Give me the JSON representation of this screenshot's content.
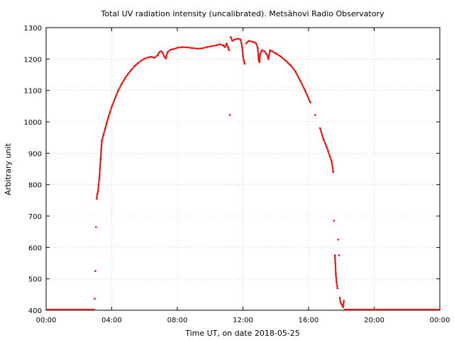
{
  "chart_data": {
    "type": "scatter",
    "title": "Total UV radiation intensity (uncalibrated). Metsähovi Radio Observatory",
    "xlabel": "Time UT, on date 2018-05-25",
    "ylabel": "Arbitrary unit",
    "xlim": [
      0,
      24
    ],
    "ylim": [
      400,
      1300
    ],
    "grid": true,
    "x_ticks": [
      {
        "value": 0,
        "label": "00:00"
      },
      {
        "value": 4,
        "label": "04:00"
      },
      {
        "value": 8,
        "label": "08:00"
      },
      {
        "value": 12,
        "label": "12:00"
      },
      {
        "value": 16,
        "label": "16:00"
      },
      {
        "value": 20,
        "label": "20:00"
      },
      {
        "value": 24,
        "label": "00:00"
      }
    ],
    "y_ticks": [
      {
        "value": 400,
        "label": "400"
      },
      {
        "value": 500,
        "label": "500"
      },
      {
        "value": 600,
        "label": "600"
      },
      {
        "value": 700,
        "label": "700"
      },
      {
        "value": 800,
        "label": "800"
      },
      {
        "value": 900,
        "label": "900"
      },
      {
        "value": 1000,
        "label": "1000"
      },
      {
        "value": 1100,
        "label": "1100"
      },
      {
        "value": 1200,
        "label": "1200"
      },
      {
        "value": 1300,
        "label": "1300"
      }
    ],
    "series_color": "#ff0000",
    "points": [
      [
        2.96,
        437
      ],
      [
        3.0,
        525
      ],
      [
        3.04,
        665
      ],
      [
        3.08,
        755
      ],
      [
        3.12,
        770
      ],
      [
        3.16,
        778
      ],
      [
        3.2,
        800
      ],
      [
        3.24,
        820
      ],
      [
        3.28,
        850
      ],
      [
        3.32,
        880
      ],
      [
        3.36,
        912
      ],
      [
        3.4,
        940
      ],
      [
        3.5,
        960
      ],
      [
        3.6,
        978
      ],
      [
        3.7,
        998
      ],
      [
        3.8,
        1015
      ],
      [
        3.9,
        1032
      ],
      [
        4.0,
        1048
      ],
      [
        4.2,
        1075
      ],
      [
        4.4,
        1100
      ],
      [
        4.6,
        1120
      ],
      [
        4.8,
        1138
      ],
      [
        5.0,
        1153
      ],
      [
        5.2,
        1166
      ],
      [
        5.4,
        1178
      ],
      [
        5.6,
        1187
      ],
      [
        5.8,
        1195
      ],
      [
        6.0,
        1201
      ],
      [
        6.2,
        1205
      ],
      [
        6.4,
        1207
      ],
      [
        6.6,
        1204
      ],
      [
        6.8,
        1212
      ],
      [
        6.9,
        1222
      ],
      [
        7.0,
        1225
      ],
      [
        7.1,
        1220
      ],
      [
        7.2,
        1208
      ],
      [
        7.3,
        1202
      ],
      [
        7.4,
        1222
      ],
      [
        7.6,
        1230
      ],
      [
        7.8,
        1232
      ],
      [
        8.0,
        1236
      ],
      [
        8.3,
        1238
      ],
      [
        8.6,
        1237
      ],
      [
        8.9,
        1235
      ],
      [
        9.2,
        1233
      ],
      [
        9.5,
        1234
      ],
      [
        9.8,
        1238
      ],
      [
        10.1,
        1241
      ],
      [
        10.4,
        1244
      ],
      [
        10.6,
        1247
      ],
      [
        10.8,
        1243
      ],
      [
        10.9,
        1238
      ],
      [
        11.0,
        1249
      ],
      [
        11.1,
        1236
      ],
      [
        11.15,
        1228
      ],
      [
        11.2,
        1022
      ],
      [
        11.25,
        1270
      ],
      [
        11.35,
        1258
      ],
      [
        11.5,
        1262
      ],
      [
        11.7,
        1265
      ],
      [
        11.85,
        1262
      ],
      [
        11.95,
        1238
      ],
      [
        12.0,
        1210
      ],
      [
        12.05,
        1195
      ],
      [
        12.1,
        1185
      ],
      [
        12.2,
        1250
      ],
      [
        12.35,
        1258
      ],
      [
        12.5,
        1256
      ],
      [
        12.65,
        1254
      ],
      [
        12.8,
        1250
      ],
      [
        12.9,
        1235
      ],
      [
        12.95,
        1200
      ],
      [
        13.0,
        1190
      ],
      [
        13.05,
        1215
      ],
      [
        13.15,
        1228
      ],
      [
        13.3,
        1225
      ],
      [
        13.45,
        1215
      ],
      [
        13.55,
        1200
      ],
      [
        13.65,
        1228
      ],
      [
        13.8,
        1224
      ],
      [
        14.0,
        1218
      ],
      [
        14.3,
        1208
      ],
      [
        14.6,
        1195
      ],
      [
        14.9,
        1180
      ],
      [
        15.2,
        1160
      ],
      [
        15.5,
        1130
      ],
      [
        15.8,
        1098
      ],
      [
        16.1,
        1062
      ],
      [
        16.4,
        1022
      ],
      [
        16.7,
        980
      ],
      [
        16.9,
        945
      ],
      [
        17.1,
        920
      ],
      [
        17.2,
        905
      ],
      [
        17.3,
        890
      ],
      [
        17.4,
        875
      ],
      [
        17.5,
        840
      ],
      [
        17.55,
        685
      ],
      [
        17.6,
        575
      ],
      [
        17.63,
        550
      ],
      [
        17.66,
        515
      ],
      [
        17.7,
        490
      ],
      [
        17.73,
        480
      ],
      [
        17.76,
        470
      ],
      [
        17.8,
        625
      ],
      [
        17.85,
        575
      ],
      [
        17.9,
        440
      ],
      [
        17.95,
        425
      ],
      [
        18.0,
        420
      ],
      [
        18.05,
        415
      ],
      [
        18.1,
        410
      ],
      [
        18.15,
        430
      ]
    ]
  }
}
